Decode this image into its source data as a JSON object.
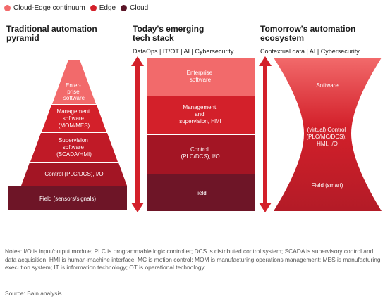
{
  "legend": [
    {
      "label": "Cloud-Edge continuum",
      "color": "#f26a6b"
    },
    {
      "label": "Edge",
      "color": "#d3202a"
    },
    {
      "label": "Cloud",
      "color": "#5a1527"
    }
  ],
  "columns": {
    "traditional": {
      "title_lines": [
        "Traditional automation",
        "pyramid"
      ],
      "layers": [
        {
          "lines": [
            "Enter-",
            "prise",
            "software"
          ],
          "color": "#f26a6b"
        },
        {
          "lines": [
            "Management",
            "software",
            "(MOM/MES)"
          ],
          "color": "#d3202a"
        },
        {
          "lines": [
            "Supervision",
            "software",
            "(SCADA/HMI)"
          ],
          "color": "#c01a27"
        },
        {
          "lines": [
            "Control (PLC/DCS), I/O"
          ],
          "color": "#a31524"
        },
        {
          "lines": [
            "Field (sensors/signals)"
          ],
          "color": "#6e1527"
        }
      ]
    },
    "emerging": {
      "title_lines": [
        "Today's emerging",
        "tech stack"
      ],
      "subtitle": "DataOps | IT/OT | AI | Cybersecurity",
      "layers": [
        {
          "lines": [
            "Enterprise",
            "software"
          ],
          "color": "#f26a6b"
        },
        {
          "lines": [
            "Management",
            "and",
            "supervision, HMI"
          ],
          "color": "#d3202a"
        },
        {
          "lines": [
            "Control",
            "(PLC/DCS), I/O"
          ],
          "color": "#a31524"
        },
        {
          "lines": [
            "Field"
          ],
          "color": "#6e1527"
        }
      ]
    },
    "tomorrow": {
      "title_lines": [
        "Tomorrow's automation",
        "ecosystem"
      ],
      "subtitle": "Contextual data | AI | Cybersecurity",
      "labels": [
        {
          "lines": [
            "Software"
          ]
        },
        {
          "lines": [
            "(virtual) Control",
            "(PLC/MC/DCS),",
            "HMI, I/O"
          ]
        },
        {
          "lines": [
            "Field (smart)"
          ]
        }
      ]
    }
  },
  "notes": "Notes: I/O is input/output module; PLC is programmable logic controller; DCS is distributed control system; SCADA is supervisory control and data acquisition; HMI is human-machine interface; MC is motion control; MOM is manufacturing operations management; MES is manufacturing execution system; IT is information technology; OT is operational technology",
  "source": "Source: Bain analysis"
}
